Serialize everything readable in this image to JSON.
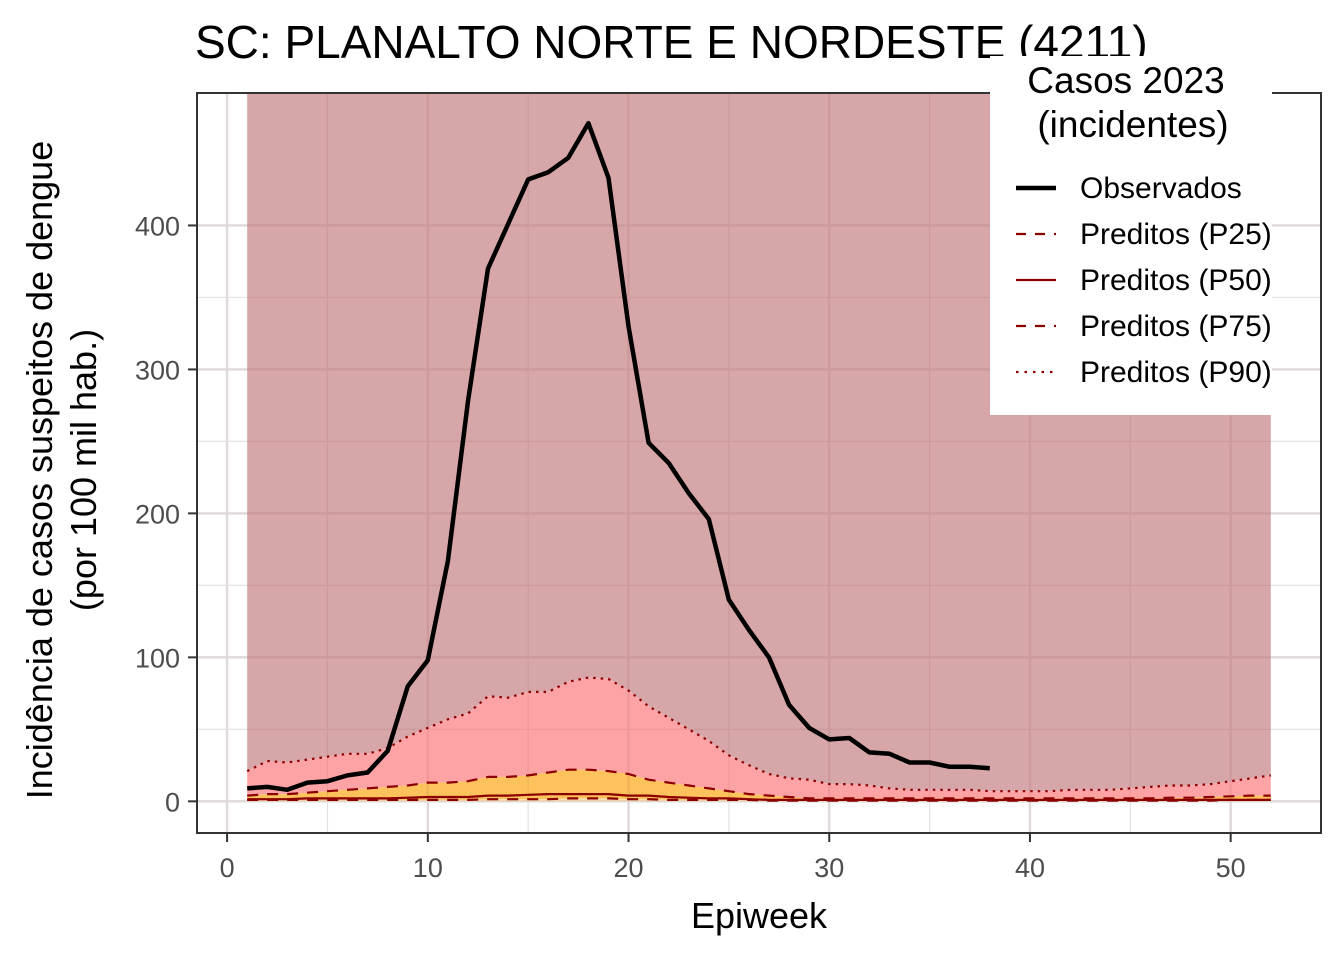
{
  "chart_data": {
    "type": "line",
    "title": "SC: PLANALTO NORTE E NORDESTE (4211)",
    "xlabel": "Epiweek",
    "ylabel": [
      "Incidência de casos suspeitos de dengue",
      "(por 100 mil hab.)"
    ],
    "xlim": [
      -1.5,
      54.5
    ],
    "ylim": [
      -22,
      492
    ],
    "x_ticks": [
      0,
      10,
      20,
      30,
      40,
      50
    ],
    "x_tick_labels": [
      "0",
      "10",
      "20",
      "30",
      "40",
      "50"
    ],
    "y_ticks": [
      0,
      100,
      200,
      300,
      400
    ],
    "y_tick_labels": [
      "0",
      "100",
      "200",
      "300",
      "400"
    ],
    "grid": true,
    "legend": {
      "title": [
        "Casos 2023",
        "(incidentes)"
      ],
      "position": "top-right"
    },
    "band_colors": {
      "above_p90": "#d6a6a8",
      "p75_p90": "#fea3a5",
      "p25_p75": "#fdc25c",
      "below_p25": "#fde0b0"
    },
    "x": [
      1,
      2,
      3,
      4,
      5,
      6,
      7,
      8,
      9,
      10,
      11,
      12,
      13,
      14,
      15,
      16,
      17,
      18,
      19,
      20,
      21,
      22,
      23,
      24,
      25,
      26,
      27,
      28,
      29,
      30,
      31,
      32,
      33,
      34,
      35,
      36,
      37,
      38,
      39,
      40,
      41,
      42,
      43,
      44,
      45,
      46,
      47,
      48,
      49,
      50,
      51,
      52
    ],
    "series": [
      {
        "name": "Observados",
        "color": "#000000",
        "dash": "solid",
        "x": [
          1,
          2,
          3,
          4,
          5,
          6,
          7,
          8,
          9,
          10,
          11,
          12,
          13,
          14,
          15,
          16,
          17,
          18,
          19,
          20,
          21,
          22,
          23,
          24,
          25,
          26,
          27,
          28,
          29,
          30,
          31,
          32,
          33,
          34,
          35,
          36,
          37,
          38
        ],
        "values": [
          9,
          10,
          8,
          13,
          14,
          18,
          20,
          35,
          80,
          98,
          167,
          278,
          370,
          401,
          432,
          437,
          447,
          471,
          433,
          330,
          249,
          235,
          214,
          196,
          140,
          119,
          100,
          67,
          51,
          43,
          44,
          34,
          33,
          27,
          27,
          24,
          24,
          23
        ]
      },
      {
        "name": "Preditos (P25)",
        "color": "#8b0000",
        "dash": "dashed",
        "values": [
          1,
          1,
          1,
          1,
          1,
          1,
          1,
          1,
          1,
          1,
          1,
          1,
          1.5,
          1.5,
          1.5,
          1.5,
          2,
          2,
          2,
          1.5,
          1.5,
          1,
          1,
          1,
          1,
          1,
          0.5,
          0.5,
          0.5,
          0.5,
          0.5,
          0.5,
          0.5,
          0.5,
          0.5,
          0.5,
          0.5,
          0.5,
          0.5,
          0.5,
          0.5,
          0.5,
          0.5,
          0.5,
          0.5,
          0.5,
          0.5,
          0.5,
          0.5,
          1,
          1,
          1
        ]
      },
      {
        "name": "Preditos (P50)",
        "color": "#8b0000",
        "dash": "solid",
        "values": [
          1.5,
          1.5,
          1.5,
          2,
          2,
          2,
          2,
          2,
          2.5,
          3,
          3,
          3,
          4,
          4,
          4.5,
          5,
          5,
          5,
          5,
          4,
          4,
          3,
          2.5,
          2,
          2,
          1.5,
          1,
          1,
          1,
          1,
          1,
          1,
          1,
          1,
          1,
          1,
          1,
          1,
          1,
          1,
          1,
          1,
          1,
          1,
          1,
          1,
          1,
          1,
          1,
          1,
          1,
          1
        ]
      },
      {
        "name": "Preditos (P75)",
        "color": "#8b0000",
        "dash": "dashed",
        "values": [
          4,
          5,
          5,
          6,
          7,
          8,
          9,
          10,
          11,
          13,
          13,
          14,
          17,
          17,
          18,
          20,
          22,
          22,
          21,
          19,
          15,
          13,
          11,
          9,
          7,
          5,
          4,
          3,
          2,
          2,
          2,
          2,
          2,
          2,
          2,
          2,
          2,
          2,
          2,
          2,
          2,
          2,
          2,
          2,
          2,
          2,
          2.5,
          2.5,
          3,
          3.5,
          4,
          4
        ]
      },
      {
        "name": "Preditos (P90)",
        "color": "#8b0000",
        "dash": "dotted",
        "values": [
          21,
          28,
          27,
          29,
          31,
          33,
          33,
          37,
          45,
          51,
          57,
          61,
          73,
          72,
          76,
          76,
          83,
          86,
          85,
          77,
          66,
          58,
          50,
          42,
          32,
          25,
          19,
          16,
          15,
          12,
          12,
          11,
          9,
          8,
          8,
          8,
          8,
          7,
          7,
          7,
          7,
          8,
          8,
          8,
          9,
          10,
          11,
          11,
          12,
          14,
          16,
          18
        ]
      }
    ]
  }
}
